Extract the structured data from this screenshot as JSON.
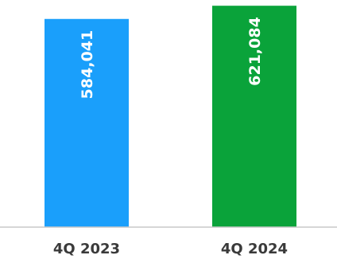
{
  "chart_data": {
    "type": "bar",
    "categories": [
      "4Q 2023",
      "4Q 2024"
    ],
    "values": [
      584041,
      621084
    ],
    "value_labels": [
      "584,041",
      "621,084"
    ],
    "colors": [
      "#1a9ffb",
      "#0aa33a"
    ],
    "axis_color": "#c9c9c9",
    "label_color": "#3a3a3a",
    "ylim": [
      0,
      626000
    ],
    "grid": false,
    "legend": "none"
  }
}
